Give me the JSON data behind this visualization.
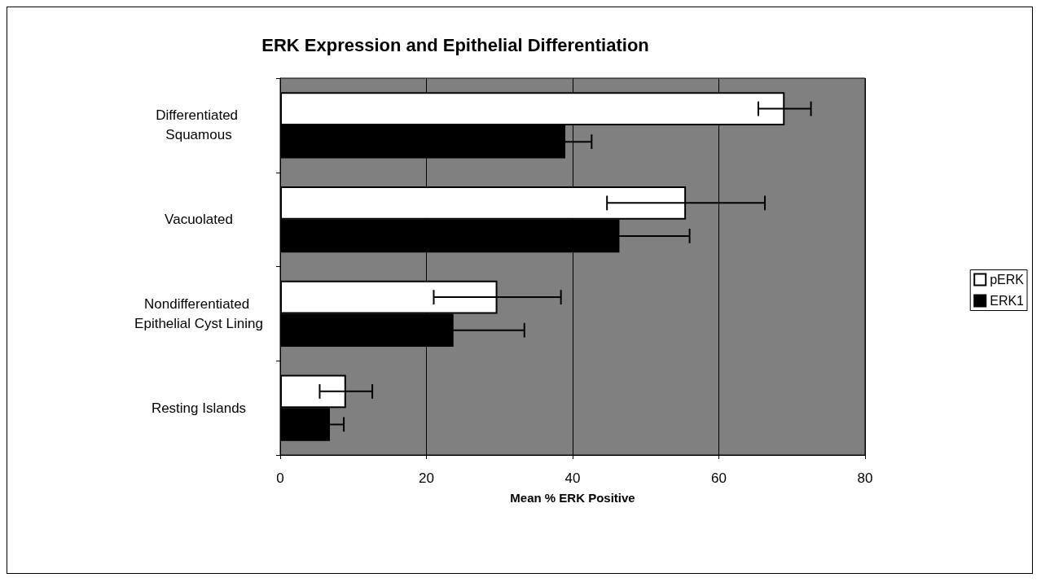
{
  "chart_data": {
    "type": "bar",
    "orientation": "horizontal",
    "title": "ERK Expression and Epithelial Differentiation",
    "xlabel": "Mean % ERK Positive",
    "categories": [
      "Differentiated Squamous",
      "Vacuolated",
      "Nondifferentiated Epithelial Cyst Lining",
      "Resting Islands"
    ],
    "series": [
      {
        "name": "pERK",
        "color": "#ffffff",
        "values": [
          69,
          55.5,
          29.7,
          9
        ],
        "errors": [
          3.6,
          10.8,
          8.7,
          3.6
        ]
      },
      {
        "name": "ERK1",
        "color": "#000000",
        "values": [
          39,
          46.4,
          23.7,
          6.8
        ],
        "errors": [
          3.6,
          9.6,
          9.7,
          1.9
        ]
      }
    ],
    "xlim": [
      0,
      80
    ],
    "xticks": [
      0,
      20,
      40,
      60,
      80
    ],
    "grid": "x",
    "legend": "right"
  }
}
